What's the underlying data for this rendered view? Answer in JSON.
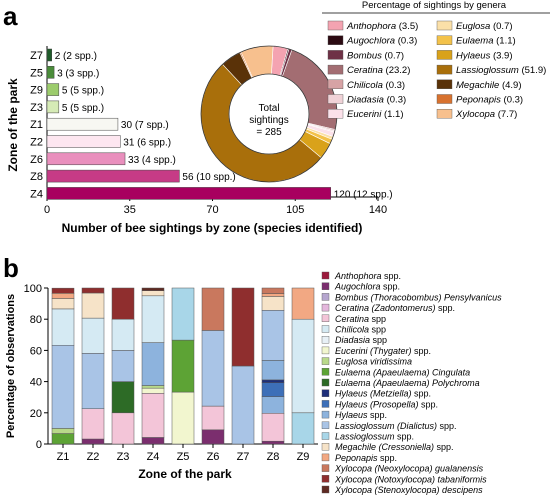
{
  "panel_a": {
    "label": "a",
    "ylabel": "Zone of the park",
    "xlabel": "Number of bee sightings by zone (species identified)",
    "xticks": [
      "0",
      "35",
      "70",
      "105",
      "140"
    ]
  },
  "panel_b": {
    "label": "b",
    "ylabel": "Percentage of observations",
    "xlabel": "Zone of the park",
    "yticks": [
      "0",
      "20",
      "40",
      "60",
      "80",
      "100"
    ]
  },
  "donut": {
    "center_line1": "Total",
    "center_line2": "sightings",
    "center_line3": "= 285"
  },
  "genera_legend": {
    "title": "Percentage of sightings by genera",
    "items": [
      {
        "name": "Anthophora",
        "value": "(3.5)",
        "color": "#f4a3b1"
      },
      {
        "name": "Augochlora",
        "value": "(0.3)",
        "color": "#2b0a12"
      },
      {
        "name": "Bombus",
        "value": "(0.7)",
        "color": "#6e3146"
      },
      {
        "name": "Ceratina",
        "value": "(23.2)",
        "color": "#a36d72"
      },
      {
        "name": "Chilicola",
        "value": "(0.3)",
        "color": "#d7a3a5"
      },
      {
        "name": "Diadasia",
        "value": "(0.3)",
        "color": "#f0d2d7"
      },
      {
        "name": "Eucerini",
        "value": "(1.1)",
        "color": "#fbe1ea"
      },
      {
        "name": "Euglosa",
        "value": "(0.7)",
        "color": "#fbe0a8"
      },
      {
        "name": "Eulaema",
        "value": "(1.1)",
        "color": "#f3c24a"
      },
      {
        "name": "Hylaeus",
        "value": "(3.9)",
        "color": "#d9a21a"
      },
      {
        "name": "Lassioglossum",
        "value": "(51.9)",
        "color": "#a96f0b"
      },
      {
        "name": "Megachile",
        "value": "(4.9)",
        "color": "#5a3208"
      },
      {
        "name": "Peponapis",
        "value": "(0.3)",
        "color": "#d8722f"
      },
      {
        "name": "Xylocopa",
        "value": "(7.7)",
        "color": "#f7c08e"
      }
    ]
  },
  "species_legend": [
    {
      "name": "Anthophora",
      "suffix": " spp.",
      "color": "#9b1a3c"
    },
    {
      "name": "Augochlora",
      "suffix": " spp.",
      "color": "#7b2e6e"
    },
    {
      "name": "Bombus (Thoracobombus) Pensylvanicus",
      "suffix": "",
      "color": "#b6a6cf"
    },
    {
      "name": "Ceratina (Zadontomerus)",
      "suffix": " spp.",
      "color": "#e4b7dc"
    },
    {
      "name": "Ceratina",
      "suffix": " spp",
      "color": "#f3c5d8"
    },
    {
      "name": "Chilicola",
      "suffix": " spp",
      "color": "#d5eaf3"
    },
    {
      "name": "Diadasia",
      "suffix": " spp",
      "color": "#e8f0f6"
    },
    {
      "name": "Eucerini (Thygater)",
      "suffix": " spp.",
      "color": "#f2f6cf"
    },
    {
      "name": "Euglosa viridissima",
      "suffix": "",
      "color": "#b9d98a"
    },
    {
      "name": "Eulaema (Apaeulaema) Cingulata",
      "suffix": "",
      "color": "#5da335"
    },
    {
      "name": "Eulaema (Apaeulaema) Polychroma",
      "suffix": "",
      "color": "#2d6b26"
    },
    {
      "name": "Hylaeus (Metziella)",
      "suffix": " spp.",
      "color": "#1e2f7a"
    },
    {
      "name": "Hylaeus (Prosopella)",
      "suffix": " spp.",
      "color": "#3d6fb8"
    },
    {
      "name": "Hylaeus",
      "suffix": " spp.",
      "color": "#8db3dd"
    },
    {
      "name": "Lassioglossum (Dialictus)",
      "suffix": " spp.",
      "color": "#a9c4e6"
    },
    {
      "name": "Lassioglossum",
      "suffix": " spp.",
      "color": "#a8d6e8"
    },
    {
      "name": "Megachile (Cressoniella)",
      "suffix": " spp.",
      "color": "#f6e3c8"
    },
    {
      "name": "Peponapis",
      "suffix": " spp.",
      "color": "#f2a883"
    },
    {
      "name": "Xylocopa (Neoxylocopa) gualanensis",
      "suffix": "",
      "color": "#c9785e"
    },
    {
      "name": "Xylocopa (Notoxylocopa) tabaniformis",
      "suffix": "",
      "color": "#8f2e2e"
    },
    {
      "name": "Xylocopa (Stenoxylocopa) descipens",
      "suffix": "",
      "color": "#5e2a22"
    }
  ],
  "chart_data": [
    {
      "type": "bar",
      "orientation": "horizontal",
      "categories": [
        "Z7",
        "Z5",
        "Z9",
        "Z3",
        "Z1",
        "Z2",
        "Z6",
        "Z8",
        "Z4"
      ],
      "values": [
        2,
        3,
        5,
        5,
        30,
        31,
        33,
        56,
        120
      ],
      "data_labels": [
        "2 (2 spp.)",
        "3 (3 spp.)",
        "5 (5 spp.)",
        "5 (5 spp.)",
        "30 (7 spp.)",
        "31 (6 spp.)",
        "33 (4 spp.)",
        "56 (10 spp.)",
        "120 (12 spp.)"
      ],
      "colors": [
        "#1f5c2a",
        "#4a8c3a",
        "#9ccc6c",
        "#d6ebb6",
        "#f7f7f2",
        "#fde6f0",
        "#e98fbd",
        "#c63b86",
        "#a8005f"
      ],
      "xlabel": "Number of bee sightings by zone (species identified)",
      "ylabel": "Zone of the park",
      "xlim": [
        0,
        140
      ],
      "grid": false
    },
    {
      "type": "pie",
      "donut": true,
      "total": 285,
      "labels": [
        "Anthophora",
        "Augochlora",
        "Bombus",
        "Ceratina",
        "Chilicola",
        "Diadasia",
        "Eucerini",
        "Euglosa",
        "Eulaema",
        "Hylaeus",
        "Lassioglossum",
        "Megachile",
        "Peponapis",
        "Xylocopa"
      ],
      "values": [
        3.5,
        0.3,
        0.7,
        23.2,
        0.3,
        0.3,
        1.1,
        0.7,
        1.1,
        3.9,
        51.9,
        4.9,
        0.3,
        7.7
      ],
      "legend": "right"
    },
    {
      "type": "bar",
      "stacked": true,
      "categories": [
        "Z1",
        "Z2",
        "Z3",
        "Z4",
        "Z5",
        "Z6",
        "Z7",
        "Z8",
        "Z9"
      ],
      "ylim": [
        0,
        100
      ],
      "xlabel": "Zone of the park",
      "ylabel": "Percentage of observations",
      "legend": "right",
      "stacks": [
        [
          {
            "s": 9,
            "v": 6.7
          },
          {
            "s": 8,
            "v": 3.3
          },
          {
            "s": 14,
            "v": 53.3
          },
          {
            "s": 5,
            "v": 23.3
          },
          {
            "s": 16,
            "v": 6.7
          },
          {
            "s": 17,
            "v": 3.3
          },
          {
            "s": 19,
            "v": 3.3
          }
        ],
        [
          {
            "s": 1,
            "v": 3.2
          },
          {
            "s": 4,
            "v": 19.4
          },
          {
            "s": 14,
            "v": 35.5
          },
          {
            "s": 5,
            "v": 22.6
          },
          {
            "s": 16,
            "v": 16.1
          },
          {
            "s": 19,
            "v": 3.2
          }
        ],
        [
          {
            "s": 4,
            "v": 20
          },
          {
            "s": 10,
            "v": 20
          },
          {
            "s": 14,
            "v": 20
          },
          {
            "s": 5,
            "v": 20
          },
          {
            "s": 19,
            "v": 20
          }
        ],
        [
          {
            "s": 1,
            "v": 4.2
          },
          {
            "s": 4,
            "v": 28.3
          },
          {
            "s": 7,
            "v": 3.3
          },
          {
            "s": 8,
            "v": 1.7
          },
          {
            "s": 13,
            "v": 27.5
          },
          {
            "s": 5,
            "v": 30
          },
          {
            "s": 16,
            "v": 3.3
          },
          {
            "s": 20,
            "v": 1.7
          }
        ],
        [
          {
            "s": 7,
            "v": 33.3
          },
          {
            "s": 9,
            "v": 33.3
          },
          {
            "s": 15,
            "v": 33.4
          }
        ],
        [
          {
            "s": 1,
            "v": 9.1
          },
          {
            "s": 4,
            "v": 15.2
          },
          {
            "s": 14,
            "v": 48.5
          },
          {
            "s": 18,
            "v": 27.2
          }
        ],
        [
          {
            "s": 14,
            "v": 50
          },
          {
            "s": 19,
            "v": 50
          }
        ],
        [
          {
            "s": 1,
            "v": 1.8
          },
          {
            "s": 4,
            "v": 17.9
          },
          {
            "s": 13,
            "v": 10.7
          },
          {
            "s": 12,
            "v": 8.9
          },
          {
            "s": 11,
            "v": 1.8
          },
          {
            "s": 13,
            "v": 12.5
          },
          {
            "s": 14,
            "v": 32.1
          },
          {
            "s": 16,
            "v": 8.9
          },
          {
            "s": 17,
            "v": 1.8
          },
          {
            "s": 18,
            "v": 3.6
          }
        ],
        [
          {
            "s": 15,
            "v": 20
          },
          {
            "s": 5,
            "v": 60
          },
          {
            "s": 17,
            "v": 20
          }
        ]
      ]
    }
  ]
}
